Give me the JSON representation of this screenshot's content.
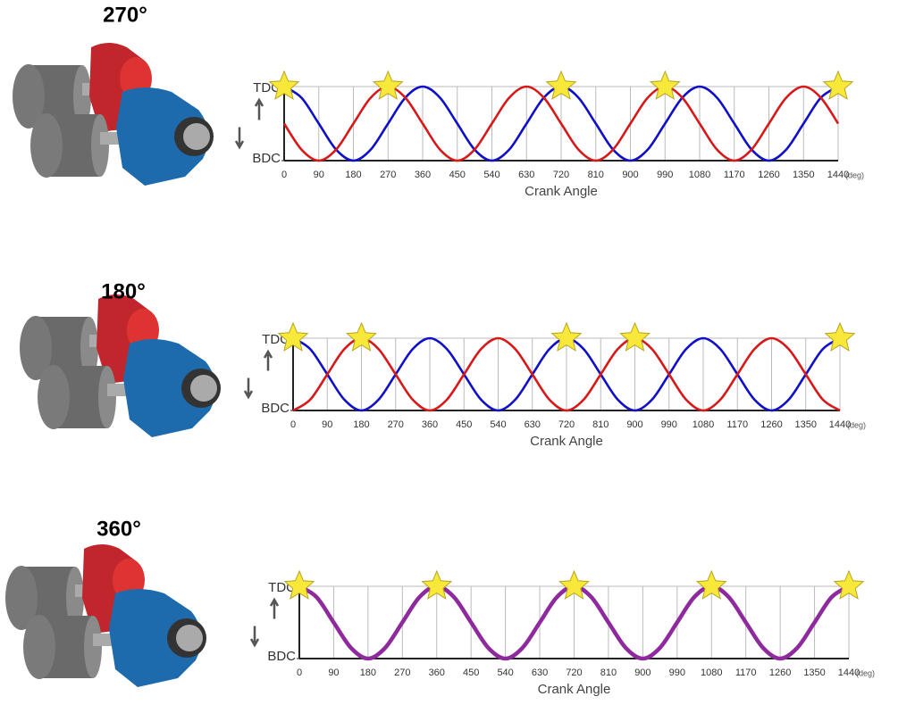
{
  "chart_data": [
    {
      "type": "line",
      "title": "270°",
      "x_label": "Crank Angle",
      "x_unit": "(deg)",
      "xlim": [
        0,
        1440
      ],
      "xticks": [
        0,
        90,
        180,
        270,
        360,
        450,
        540,
        630,
        720,
        810,
        900,
        990,
        1080,
        1170,
        1260,
        1350,
        1440
      ],
      "ylim": [
        0,
        1
      ],
      "yticks": [
        {
          "value": 0,
          "label": "BDC"
        },
        {
          "value": 1,
          "label": "TDC"
        }
      ],
      "x": [
        0,
        45,
        90,
        135,
        180,
        225,
        270,
        315,
        360,
        405,
        450,
        495,
        540,
        585,
        630,
        675,
        720,
        765,
        810,
        855,
        900,
        945,
        990,
        1035,
        1080,
        1125,
        1170,
        1215,
        1260,
        1305,
        1350,
        1395,
        1440
      ],
      "series": [
        {
          "color": "#1010c8",
          "values": [
            1,
            0.85,
            0.5,
            0.15,
            0,
            0.15,
            0.5,
            0.85,
            1,
            0.85,
            0.5,
            0.15,
            0,
            0.15,
            0.5,
            0.85,
            1,
            0.85,
            0.5,
            0.15,
            0,
            0.15,
            0.5,
            0.85,
            1,
            0.85,
            0.5,
            0.15,
            0,
            0.15,
            0.5,
            0.85,
            1
          ]
        },
        {
          "color": "#d81818",
          "values": [
            0.5,
            0.15,
            0,
            0.15,
            0.5,
            0.85,
            1,
            0.85,
            0.5,
            0.15,
            0,
            0.15,
            0.5,
            0.85,
            1,
            0.85,
            0.5,
            0.15,
            0,
            0.15,
            0.5,
            0.85,
            1,
            0.85,
            0.5,
            0.15,
            0,
            0.15,
            0.5,
            0.85,
            1,
            0.85,
            0.5
          ]
        }
      ],
      "firing_angles": [
        0,
        270,
        720,
        990,
        1440
      ]
    },
    {
      "type": "line",
      "title": "180°",
      "x_label": "Crank Angle",
      "x_unit": "(deg)",
      "xlim": [
        0,
        1440
      ],
      "xticks": [
        0,
        90,
        180,
        270,
        360,
        450,
        540,
        630,
        720,
        810,
        900,
        990,
        1080,
        1170,
        1260,
        1350,
        1440
      ],
      "ylim": [
        0,
        1
      ],
      "yticks": [
        {
          "value": 0,
          "label": "BDC"
        },
        {
          "value": 1,
          "label": "TDC"
        }
      ],
      "x": [
        0,
        45,
        90,
        135,
        180,
        225,
        270,
        315,
        360,
        405,
        450,
        495,
        540,
        585,
        630,
        675,
        720,
        765,
        810,
        855,
        900,
        945,
        990,
        1035,
        1080,
        1125,
        1170,
        1215,
        1260,
        1305,
        1350,
        1395,
        1440
      ],
      "series": [
        {
          "color": "#1010c8",
          "values": [
            1,
            0.85,
            0.5,
            0.15,
            0,
            0.15,
            0.5,
            0.85,
            1,
            0.85,
            0.5,
            0.15,
            0,
            0.15,
            0.5,
            0.85,
            1,
            0.85,
            0.5,
            0.15,
            0,
            0.15,
            0.5,
            0.85,
            1,
            0.85,
            0.5,
            0.15,
            0,
            0.15,
            0.5,
            0.85,
            1
          ]
        },
        {
          "color": "#d81818",
          "values": [
            0,
            0.15,
            0.5,
            0.85,
            1,
            0.85,
            0.5,
            0.15,
            0,
            0.15,
            0.5,
            0.85,
            1,
            0.85,
            0.5,
            0.15,
            0,
            0.15,
            0.5,
            0.85,
            1,
            0.85,
            0.5,
            0.15,
            0,
            0.15,
            0.5,
            0.85,
            1,
            0.85,
            0.5,
            0.15,
            0
          ]
        }
      ],
      "firing_angles": [
        0,
        180,
        720,
        900,
        1440
      ]
    },
    {
      "type": "line",
      "title": "360°",
      "x_label": "Crank Angle",
      "x_unit": "(deg)",
      "xlim": [
        0,
        1440
      ],
      "xticks": [
        0,
        90,
        180,
        270,
        360,
        450,
        540,
        630,
        720,
        810,
        900,
        990,
        1080,
        1170,
        1260,
        1350,
        1440
      ],
      "ylim": [
        0,
        1
      ],
      "yticks": [
        {
          "value": 0,
          "label": "BDC"
        },
        {
          "value": 1,
          "label": "TDC"
        }
      ],
      "x": [
        0,
        45,
        90,
        135,
        180,
        225,
        270,
        315,
        360,
        405,
        450,
        495,
        540,
        585,
        630,
        675,
        720,
        765,
        810,
        855,
        900,
        945,
        990,
        1035,
        1080,
        1125,
        1170,
        1215,
        1260,
        1305,
        1350,
        1395,
        1440
      ],
      "series": [
        {
          "color": "#8e2a9e",
          "values": [
            1,
            0.85,
            0.5,
            0.15,
            0,
            0.15,
            0.5,
            0.85,
            1,
            0.85,
            0.5,
            0.15,
            0,
            0.15,
            0.5,
            0.85,
            1,
            0.85,
            0.5,
            0.15,
            0,
            0.15,
            0.5,
            0.85,
            1,
            0.85,
            0.5,
            0.15,
            0,
            0.15,
            0.5,
            0.85,
            1
          ]
        }
      ],
      "firing_angles": [
        0,
        360,
        720,
        1080,
        1440
      ]
    }
  ]
}
